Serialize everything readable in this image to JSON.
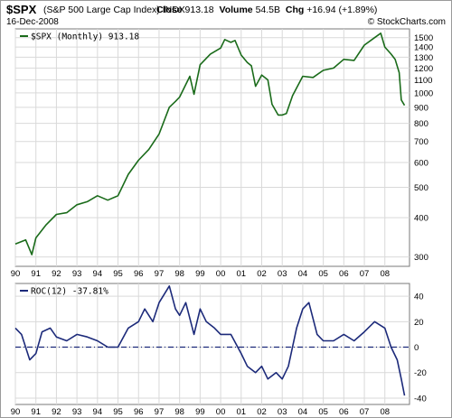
{
  "header": {
    "symbol": "$SPX",
    "name": "(S&P 500 Large Cap Index) INDX",
    "date": "16-Dec-2008",
    "close_label": "Close",
    "close_value": "913.18",
    "volume_label": "Volume",
    "volume_value": "54.5B",
    "chg_label": "Chg",
    "chg_value": "+16.94 (+1.89%)",
    "brand": "© StockCharts.com"
  },
  "colors": {
    "price": "#1a6b1a",
    "roc": "#1c2a7a",
    "grid": "#d9d9d9",
    "zero_line": "#1c2a7a"
  },
  "chart_data": [
    {
      "type": "line",
      "legend": "$SPX (Monthly) 913.18",
      "legend_position": "top-left",
      "y_scale": "log",
      "ylim": [
        280,
        1600
      ],
      "yticks": [
        300,
        400,
        500,
        600,
        700,
        800,
        900,
        1000,
        1100,
        1200,
        1300,
        1400,
        1500
      ],
      "grid": true,
      "x_tick_labels": [
        "90",
        "91",
        "92",
        "93",
        "94",
        "95",
        "96",
        "97",
        "98",
        "99",
        "00",
        "01",
        "02",
        "03",
        "04",
        "05",
        "06",
        "07",
        "08"
      ],
      "x": [
        1990.0,
        1990.5,
        1990.8,
        1991.0,
        1991.5,
        1992.0,
        1992.5,
        1993.0,
        1993.5,
        1994.0,
        1994.5,
        1995.0,
        1995.5,
        1996.0,
        1996.5,
        1997.0,
        1997.5,
        1997.8,
        1998.0,
        1998.5,
        1998.7,
        1999.0,
        1999.5,
        2000.0,
        2000.2,
        2000.5,
        2000.7,
        2001.0,
        2001.3,
        2001.5,
        2001.7,
        2002.0,
        2002.3,
        2002.5,
        2002.8,
        2003.0,
        2003.2,
        2003.5,
        2004.0,
        2004.5,
        2005.0,
        2005.5,
        2006.0,
        2006.5,
        2007.0,
        2007.5,
        2007.8,
        2008.0,
        2008.3,
        2008.5,
        2008.7,
        2008.8,
        2008.96
      ],
      "values": [
        330,
        340,
        305,
        345,
        380,
        410,
        415,
        440,
        450,
        470,
        455,
        470,
        550,
        610,
        660,
        740,
        900,
        940,
        970,
        1130,
        990,
        1230,
        1330,
        1390,
        1480,
        1450,
        1470,
        1320,
        1250,
        1220,
        1050,
        1140,
        1100,
        920,
        850,
        850,
        860,
        980,
        1130,
        1120,
        1180,
        1200,
        1280,
        1270,
        1420,
        1500,
        1550,
        1400,
        1330,
        1280,
        1160,
        950,
        913
      ]
    },
    {
      "type": "line",
      "legend": "ROC(12) -37.81%",
      "legend_position": "top-left",
      "ylim": [
        -45,
        50
      ],
      "yticks": [
        -40,
        -20,
        0,
        20,
        40
      ],
      "grid": true,
      "reference_line": 0,
      "x_tick_labels": [
        "90",
        "91",
        "92",
        "93",
        "94",
        "95",
        "96",
        "97",
        "98",
        "99",
        "00",
        "01",
        "02",
        "03",
        "04",
        "05",
        "06",
        "07",
        "08"
      ],
      "x": [
        1990.0,
        1990.3,
        1990.7,
        1991.0,
        1991.3,
        1991.7,
        1992.0,
        1992.5,
        1993.0,
        1993.5,
        1994.0,
        1994.5,
        1995.0,
        1995.5,
        1996.0,
        1996.3,
        1996.7,
        1997.0,
        1997.5,
        1997.8,
        1998.0,
        1998.3,
        1998.7,
        1999.0,
        1999.3,
        1999.7,
        2000.0,
        2000.5,
        2001.0,
        2001.3,
        2001.7,
        2002.0,
        2002.3,
        2002.7,
        2003.0,
        2003.3,
        2003.7,
        2004.0,
        2004.3,
        2004.7,
        2005.0,
        2005.5,
        2006.0,
        2006.5,
        2007.0,
        2007.5,
        2008.0,
        2008.3,
        2008.6,
        2008.8,
        2008.96
      ],
      "values": [
        15,
        10,
        -10,
        -5,
        12,
        15,
        8,
        5,
        10,
        8,
        5,
        0,
        0,
        15,
        20,
        30,
        20,
        35,
        48,
        30,
        25,
        35,
        10,
        30,
        20,
        15,
        10,
        10,
        -5,
        -15,
        -20,
        -15,
        -25,
        -20,
        -25,
        -15,
        15,
        30,
        35,
        10,
        5,
        5,
        10,
        5,
        12,
        20,
        15,
        0,
        -10,
        -25,
        -38
      ]
    }
  ]
}
